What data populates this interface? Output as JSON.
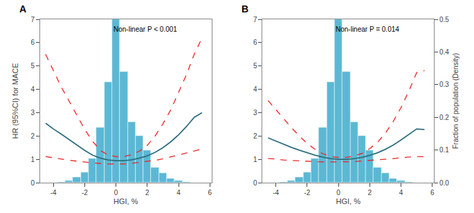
{
  "chart_data": [
    {
      "type": "line",
      "title": "A",
      "annotation": "Non-linear P < 0.001",
      "xlabel": "HGI, %",
      "ylabel": "HR (95%CI) for MACE",
      "xlim": [
        -4.85,
        6.1
      ],
      "xticks": [
        -4,
        -2,
        0,
        2,
        4,
        6
      ],
      "ylim": [
        0,
        7
      ],
      "yticks": [
        0,
        1,
        2,
        3,
        4,
        5,
        6,
        7
      ],
      "y2lim": [
        0,
        0.5
      ],
      "grid": false,
      "series": [
        {
          "type": "bar",
          "axis": "y2",
          "color": "#5BB8D4",
          "bins": [
            -4.75,
            -4.25,
            -3.75,
            -3.25,
            -2.75,
            -2.25,
            -1.75,
            -1.25,
            -0.75,
            -0.25,
            0.25,
            0.75,
            1.25,
            1.75,
            2.25,
            2.75,
            3.25,
            3.75,
            4.25,
            4.75,
            5.25
          ],
          "values": [
            0.000214285714,
            0.000571428571,
            0.002857142857,
            0.007142857143,
            0.017142857143,
            0.031428571429,
            0.074285714286,
            0.168571428571,
            0.308571428571,
            0.5,
            0.339285714286,
            0.185714285714,
            0.142857142857,
            0.1,
            0.045714285714,
            0.028571428571,
            0.012857142857,
            0.005714285714,
            0.001285714286,
            0.000357142857
          ]
        },
        {
          "type": "line",
          "color": "#2E6E7E",
          "line_style": "solid",
          "x": [
            -4.5,
            -4.0,
            -3.5,
            -3.0,
            -2.5,
            -2.0,
            -1.5,
            -1.0,
            -0.5,
            0.0,
            0.5,
            1.0,
            1.5,
            2.0,
            2.5,
            3.0,
            3.5,
            4.0,
            4.5,
            5.0,
            5.5
          ],
          "values": [
            2.55,
            2.3,
            2.08,
            1.85,
            1.6,
            1.38,
            1.18,
            1.05,
            0.97,
            0.94,
            0.94,
            0.98,
            1.05,
            1.15,
            1.3,
            1.5,
            1.75,
            2.05,
            2.4,
            2.8,
            3.0
          ]
        },
        {
          "type": "line",
          "color": "#EE2222",
          "line_style": "dashed",
          "x": [
            -4.5,
            -4.0,
            -3.5,
            -3.0,
            -2.5,
            -2.0,
            -1.5,
            -1.0,
            -0.5,
            0.0,
            0.5,
            1.0,
            1.5,
            2.0,
            2.5,
            3.0,
            3.5,
            4.0,
            4.5,
            5.0,
            5.5
          ],
          "values": [
            5.5,
            4.8,
            4.1,
            3.5,
            2.9,
            2.28,
            1.78,
            1.38,
            1.18,
            1.12,
            1.12,
            1.2,
            1.35,
            1.6,
            2.0,
            2.52,
            3.12,
            3.85,
            4.62,
            5.5,
            6.2
          ]
        },
        {
          "type": "line",
          "color": "#EE2222",
          "line_style": "dashed",
          "x": [
            -4.5,
            -4.0,
            -3.5,
            -3.0,
            -2.5,
            -2.0,
            -1.5,
            -1.0,
            -0.5,
            0.0,
            0.5,
            1.0,
            1.5,
            2.0,
            2.5,
            3.0,
            3.5,
            4.0,
            4.5,
            5.0,
            5.5
          ],
          "values": [
            1.12,
            1.06,
            1.0,
            0.96,
            0.92,
            0.88,
            0.85,
            0.82,
            0.8,
            0.8,
            0.8,
            0.83,
            0.87,
            0.91,
            0.96,
            1.02,
            1.1,
            1.18,
            1.27,
            1.36,
            1.44
          ]
        }
      ]
    },
    {
      "type": "line",
      "title": "B",
      "annotation": "Non-linear P = 0.014",
      "xlabel": "HGI, %",
      "y2label": "Fraction of population (Density)",
      "xlim": [
        -4.85,
        6.1
      ],
      "xticks": [
        -4,
        -2,
        0,
        2,
        4,
        6
      ],
      "ylim": [
        0,
        7
      ],
      "yticks": [
        0,
        1,
        2,
        3,
        4,
        5,
        6,
        7
      ],
      "y2lim": [
        0,
        0.5
      ],
      "y2ticks": [
        {
          "value": 0,
          "label": "0.0"
        },
        0.1,
        0.2,
        0.3,
        0.4,
        0.5
      ],
      "grid": false,
      "series": [
        {
          "type": "bar",
          "axis": "y2",
          "color": "#5BB8D4",
          "bins": [
            -4.75,
            -4.25,
            -3.75,
            -3.25,
            -2.75,
            -2.25,
            -1.75,
            -1.25,
            -0.75,
            -0.25,
            0.25,
            0.75,
            1.25,
            1.75,
            2.25,
            2.75,
            3.25,
            3.75,
            4.25,
            4.75,
            5.25
          ],
          "values": [
            0.000214285714,
            0.000571428571,
            0.002857142857,
            0.007142857143,
            0.017142857143,
            0.031428571429,
            0.074285714286,
            0.168571428571,
            0.308571428571,
            0.5,
            0.339285714286,
            0.185714285714,
            0.142857142857,
            0.1,
            0.045714285714,
            0.028571428571,
            0.012857142857,
            0.005714285714,
            0.001285714286,
            0.000357142857
          ]
        },
        {
          "type": "line",
          "color": "#2E6E7E",
          "line_style": "solid",
          "x": [
            -4.5,
            -4.0,
            -3.5,
            -3.0,
            -2.5,
            -2.0,
            -1.5,
            -1.0,
            -0.5,
            0.0,
            0.5,
            1.0,
            1.5,
            2.0,
            2.5,
            3.0,
            3.5,
            4.0,
            4.5,
            5.0,
            5.5
          ],
          "values": [
            1.92,
            1.78,
            1.64,
            1.51,
            1.39,
            1.28,
            1.18,
            1.1,
            1.03,
            1.0,
            1.0,
            1.03,
            1.08,
            1.17,
            1.28,
            1.43,
            1.61,
            1.83,
            2.06,
            2.3,
            2.28
          ]
        },
        {
          "type": "line",
          "color": "#EE2222",
          "line_style": "dashed",
          "x": [
            -4.5,
            -4.0,
            -3.5,
            -3.0,
            -2.5,
            -2.0,
            -1.5,
            -1.0,
            -0.5,
            0.0,
            0.5,
            1.0,
            1.5,
            2.0,
            2.5,
            3.0,
            3.5,
            4.0,
            4.5,
            5.0,
            5.5
          ],
          "values": [
            3.52,
            3.12,
            2.72,
            2.35,
            2.0,
            1.68,
            1.43,
            1.24,
            1.12,
            1.08,
            1.08,
            1.14,
            1.25,
            1.46,
            1.73,
            2.12,
            2.62,
            3.22,
            3.92,
            4.72,
            4.8
          ]
        },
        {
          "type": "line",
          "color": "#EE2222",
          "line_style": "dashed",
          "x": [
            -4.5,
            -4.0,
            -3.5,
            -3.0,
            -2.5,
            -2.0,
            -1.5,
            -1.0,
            -0.5,
            0.0,
            0.5,
            1.0,
            1.5,
            2.0,
            2.5,
            3.0,
            3.5,
            4.0,
            4.5,
            5.0,
            5.5
          ],
          "values": [
            1.04,
            1.0,
            0.97,
            0.95,
            0.93,
            0.91,
            0.9,
            0.89,
            0.89,
            0.89,
            0.89,
            0.9,
            0.93,
            0.95,
            0.97,
            1.0,
            1.03,
            1.07,
            1.1,
            1.12,
            1.11
          ]
        }
      ]
    }
  ]
}
